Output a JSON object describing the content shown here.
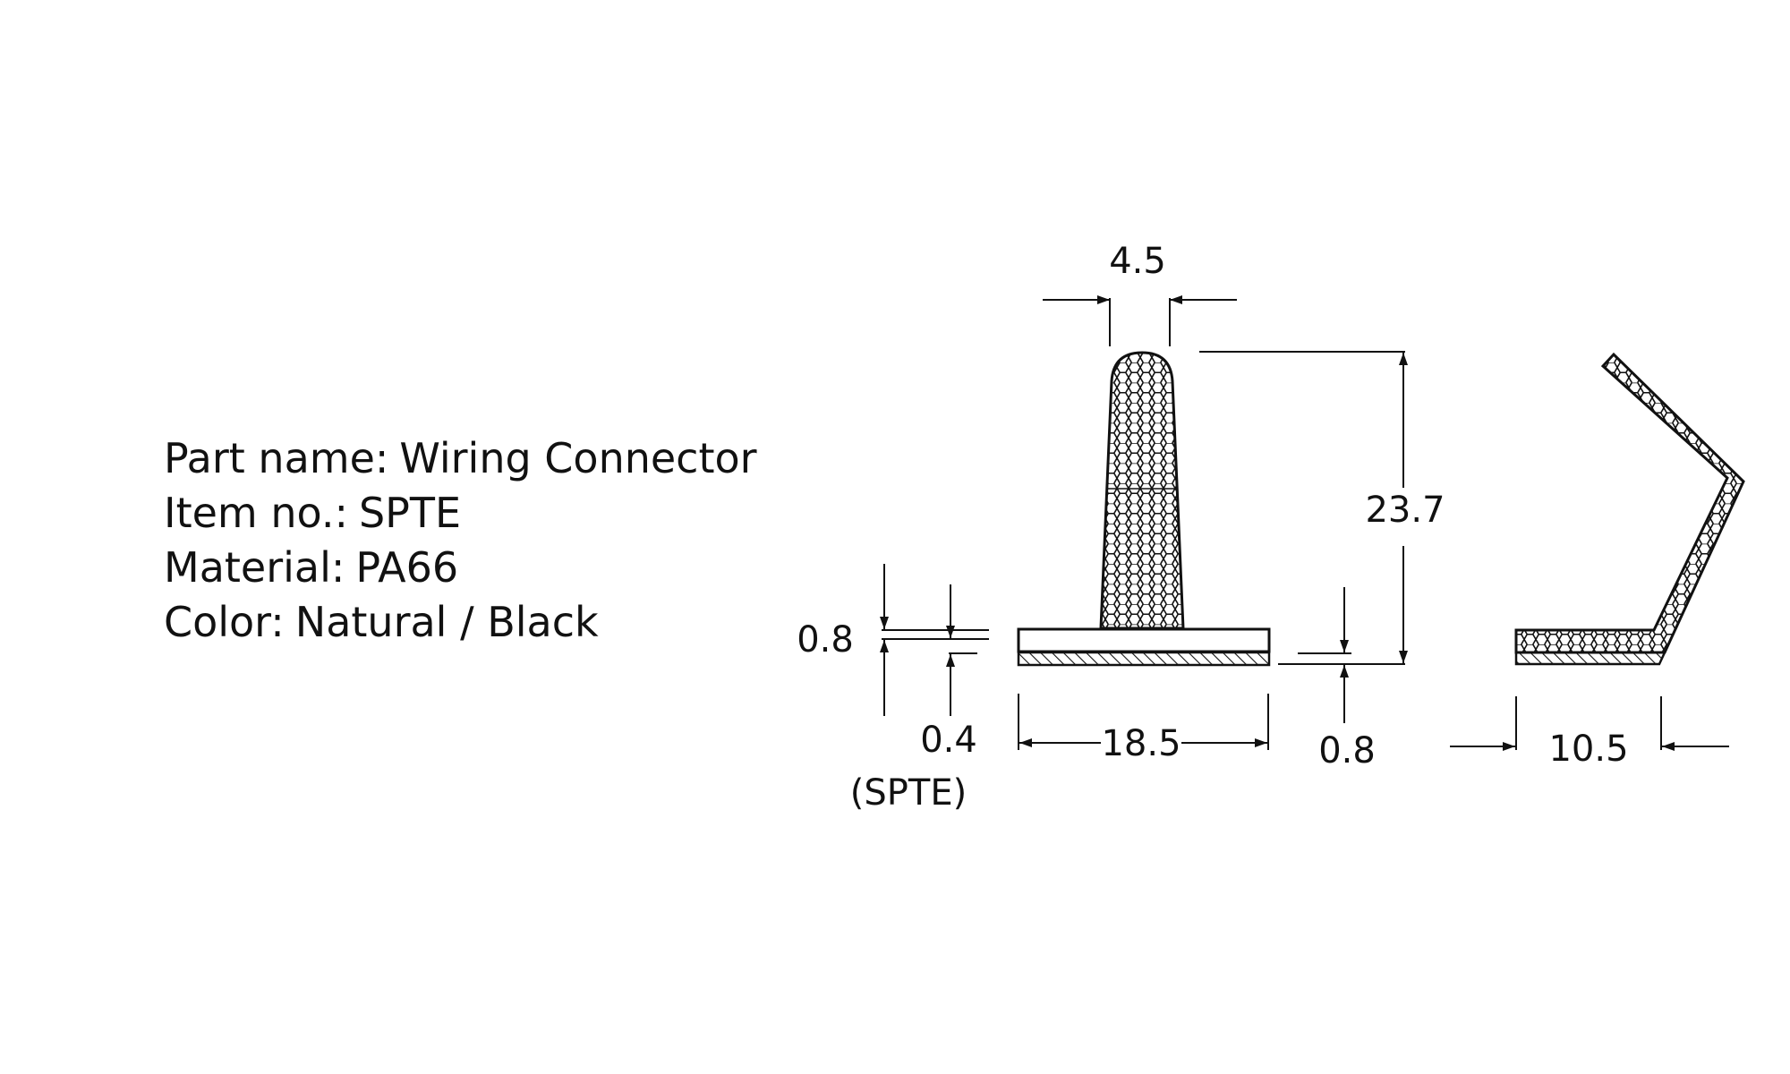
{
  "specs": {
    "part_name": {
      "label": "Part name:",
      "value": "Wiring Connector"
    },
    "item_no": {
      "label": "Item no.:",
      "value": "SPTE"
    },
    "material": {
      "label": "Material:",
      "value": "PA66"
    },
    "color": {
      "label": "Color:",
      "value": "Natural / Black"
    }
  },
  "dimensions": {
    "top_width": "4.5",
    "height": "23.7",
    "base_thickness": "0.8",
    "adhesive_thickness": "0.4",
    "model_note": "(SPTE)",
    "base_width": "18.5",
    "side_thickness": "0.8",
    "side_width": "10.5"
  },
  "colors": {
    "line": "#111111",
    "background": "#ffffff"
  }
}
